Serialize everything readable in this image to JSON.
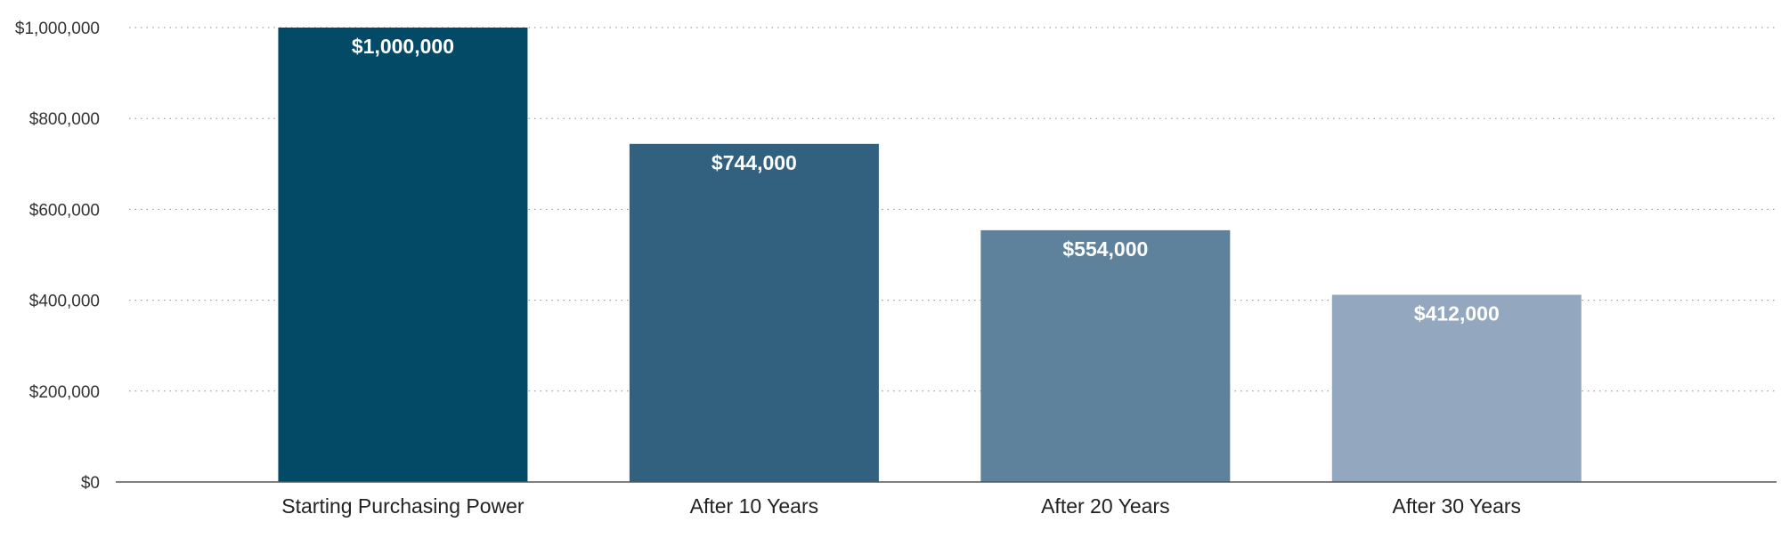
{
  "chart_data": {
    "type": "bar",
    "title": "",
    "xlabel": "",
    "ylabel": "",
    "categories": [
      "Starting Purchasing Power",
      "After 10 Years",
      "After 20 Years",
      "After 30 Years"
    ],
    "values": [
      1000000,
      744000,
      554000,
      412000
    ],
    "data_labels": [
      "$1,000,000",
      "$744,000",
      "$554,000",
      "$412,000"
    ],
    "bar_colors": [
      "#034a66",
      "#31617f",
      "#5e819c",
      "#93a8bf"
    ],
    "ylim": [
      0,
      1000000
    ],
    "yticks": [
      0,
      200000,
      400000,
      600000,
      800000,
      1000000
    ],
    "ytick_labels": [
      "$0",
      "$200,000",
      "$400,000",
      "$600,000",
      "$800,000",
      "$1,000,000"
    ],
    "grid": true,
    "legend": "none"
  }
}
